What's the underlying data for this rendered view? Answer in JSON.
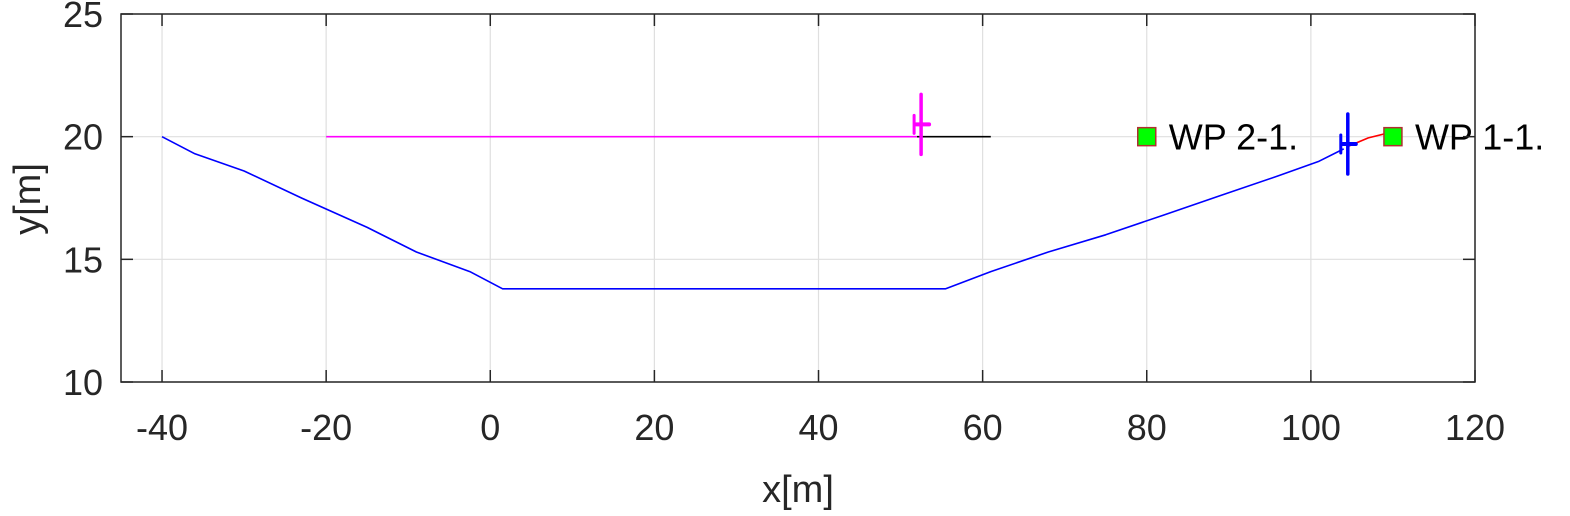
{
  "chart_data": {
    "type": "line",
    "title": "",
    "xlabel": "x[m]",
    "ylabel": "y[m]",
    "xlim": [
      -45,
      120
    ],
    "ylim": [
      10,
      25
    ],
    "xticks": [
      -40,
      -20,
      0,
      20,
      40,
      60,
      80,
      100,
      120
    ],
    "yticks": [
      10,
      15,
      20,
      25
    ],
    "xtick_labels": [
      "-40",
      "-20",
      "0",
      "20",
      "40",
      "60",
      "80",
      "100",
      "120"
    ],
    "ytick_labels": [
      "10",
      "15",
      "20",
      "25"
    ],
    "grid": true,
    "series": [
      {
        "color": "#0000ff",
        "x": [
          -40,
          -36,
          -30,
          -23,
          -15,
          -9,
          -2.5,
          1.5,
          55.5,
          61,
          68,
          75,
          82,
          89,
          96,
          101,
          104
        ],
        "y": [
          20,
          19.3,
          18.6,
          17.5,
          16.3,
          15.3,
          14.5,
          13.8,
          13.8,
          14.5,
          15.3,
          16,
          16.8,
          17.6,
          18.4,
          19.0,
          19.5
        ]
      },
      {
        "color": "#ff00ff",
        "x": [
          -20,
          52
        ],
        "y": [
          20,
          20
        ]
      },
      {
        "color": "#000000",
        "x": [
          52,
          61
        ],
        "y": [
          20,
          20
        ]
      },
      {
        "color": "#ff0000",
        "x": [
          104.5,
          107,
          110
        ],
        "y": [
          19.6,
          19.95,
          20.2
        ]
      }
    ],
    "waypoints": [
      {
        "label": "WP 2-1.",
        "x": 80,
        "y": 20,
        "color": "#00ff00"
      },
      {
        "label": "WP 1-1.",
        "x": 110,
        "y": 20,
        "color": "#00ff00"
      }
    ],
    "vehicles": [
      {
        "name": "magenta-vehicle",
        "x": 52.5,
        "y": 20.5,
        "color": "#ff00ff"
      },
      {
        "name": "blue-vehicle",
        "x": 104.5,
        "y": 19.7,
        "color": "#0000ff"
      }
    ]
  },
  "colors": {
    "axis": "#262626",
    "grid": "#dfdfdf",
    "waypoint_edge": "#b03030"
  }
}
